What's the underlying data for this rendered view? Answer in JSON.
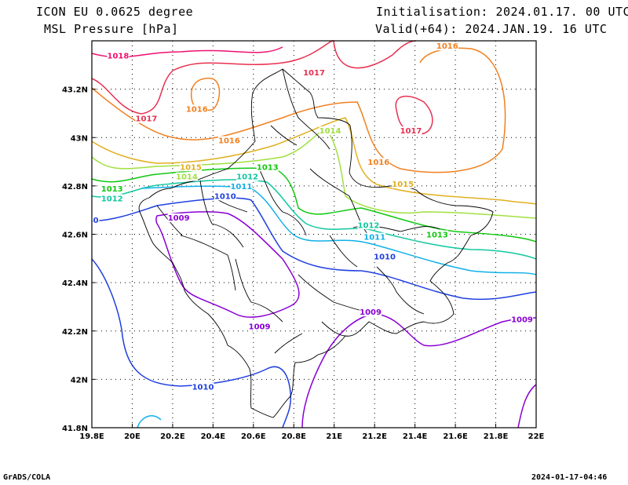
{
  "header": {
    "model": "ICON EU 0.0625 degree",
    "parameter": "MSL Pressure [hPa]",
    "initialisation": "Initialisation: 2024.01.17. 00 UTC",
    "valid": "Valid(+64): 2024.JAN.19. 16 UTC"
  },
  "footer": {
    "left": "GrADS/COLA",
    "right": "2024-01-17-04:46"
  },
  "map": {
    "lon_range": [
      19.8,
      22.0
    ],
    "lat_range": [
      41.8,
      43.4
    ],
    "x_ticks": [
      {
        "v": 19.8,
        "label": "19.8E"
      },
      {
        "v": 20.0,
        "label": "20E"
      },
      {
        "v": 20.2,
        "label": "20.2E"
      },
      {
        "v": 20.4,
        "label": "20.4E"
      },
      {
        "v": 20.6,
        "label": "20.6E"
      },
      {
        "v": 20.8,
        "label": "20.8E"
      },
      {
        "v": 21.0,
        "label": "21E"
      },
      {
        "v": 21.2,
        "label": "21.2E"
      },
      {
        "v": 21.4,
        "label": "21.4E"
      },
      {
        "v": 21.6,
        "label": "21.6E"
      },
      {
        "v": 21.8,
        "label": "21.8E"
      },
      {
        "v": 22.0,
        "label": "22E"
      }
    ],
    "y_ticks": [
      {
        "v": 41.8,
        "label": "41.8N"
      },
      {
        "v": 42.0,
        "label": "42N"
      },
      {
        "v": 42.2,
        "label": "42.2N"
      },
      {
        "v": 42.4,
        "label": "42.4N"
      },
      {
        "v": 42.6,
        "label": "42.6N"
      },
      {
        "v": 42.8,
        "label": "42.8N"
      },
      {
        "v": 43.0,
        "label": "43N"
      },
      {
        "v": 43.2,
        "label": "43.2N"
      }
    ],
    "grid": "dotted",
    "isobar_colors": {
      "1009": "#8a00d4",
      "1010": "#2040e0",
      "1011": "#10b0e8",
      "1012": "#10c8a0",
      "1013": "#10c810",
      "1014": "#a0e040",
      "1015": "#e0b020",
      "1016": "#f08020",
      "1017": "#e83050",
      "1018": "#f01070"
    },
    "contour_labels": [
      {
        "text": "1018",
        "lon": 19.93,
        "lat": 43.33,
        "color": "#f01070"
      },
      {
        "text": "1017",
        "lon": 20.07,
        "lat": 43.07,
        "color": "#e83050"
      },
      {
        "text": "1017",
        "lon": 20.9,
        "lat": 43.26,
        "color": "#e83050"
      },
      {
        "text": "1017",
        "lon": 21.38,
        "lat": 43.02,
        "color": "#e83050"
      },
      {
        "text": "1016",
        "lon": 20.32,
        "lat": 43.11,
        "color": "#f08020"
      },
      {
        "text": "1016",
        "lon": 20.48,
        "lat": 42.98,
        "color": "#f08020"
      },
      {
        "text": "1016",
        "lon": 21.56,
        "lat": 43.37,
        "color": "#f08020"
      },
      {
        "text": "1016",
        "lon": 21.22,
        "lat": 42.89,
        "color": "#f08020"
      },
      {
        "text": "1015",
        "lon": 20.29,
        "lat": 42.87,
        "color": "#e0b020"
      },
      {
        "text": "1015",
        "lon": 21.34,
        "lat": 42.8,
        "color": "#e0b020"
      },
      {
        "text": "1014",
        "lon": 20.27,
        "lat": 42.83,
        "color": "#a0e040"
      },
      {
        "text": "1014",
        "lon": 20.98,
        "lat": 43.02,
        "color": "#a0e040"
      },
      {
        "text": "1013",
        "lon": 19.9,
        "lat": 42.78,
        "color": "#10c810"
      },
      {
        "text": "1013",
        "lon": 20.67,
        "lat": 42.87,
        "color": "#10c810"
      },
      {
        "text": "1013",
        "lon": 21.51,
        "lat": 42.59,
        "color": "#10c810"
      },
      {
        "text": "1012",
        "lon": 19.9,
        "lat": 42.74,
        "color": "#10c8a0"
      },
      {
        "text": "1012",
        "lon": 20.57,
        "lat": 42.83,
        "color": "#10c8a0"
      },
      {
        "text": "1012",
        "lon": 21.17,
        "lat": 42.63,
        "color": "#10c8a0"
      },
      {
        "text": "1011",
        "lon": 20.54,
        "lat": 42.79,
        "color": "#10b0e8"
      },
      {
        "text": "1011",
        "lon": 21.2,
        "lat": 42.58,
        "color": "#10b0e8"
      },
      {
        "text": "1010",
        "lon": 20.46,
        "lat": 42.75,
        "color": "#2040e0"
      },
      {
        "text": "1010",
        "lon": 21.25,
        "lat": 42.5,
        "color": "#2040e0"
      },
      {
        "text": "1010",
        "lon": 20.35,
        "lat": 41.96,
        "color": "#2040e0"
      },
      {
        "text": "0",
        "lon": 19.82,
        "lat": 42.65,
        "color": "#2040e0"
      },
      {
        "text": "1009",
        "lon": 20.23,
        "lat": 42.66,
        "color": "#8a00d4"
      },
      {
        "text": "1009",
        "lon": 20.63,
        "lat": 42.21,
        "color": "#8a00d4"
      },
      {
        "text": "1009",
        "lon": 21.18,
        "lat": 42.27,
        "color": "#8a00d4"
      },
      {
        "text": "1009",
        "lon": 21.93,
        "lat": 42.24,
        "color": "#8a00d4"
      }
    ]
  }
}
